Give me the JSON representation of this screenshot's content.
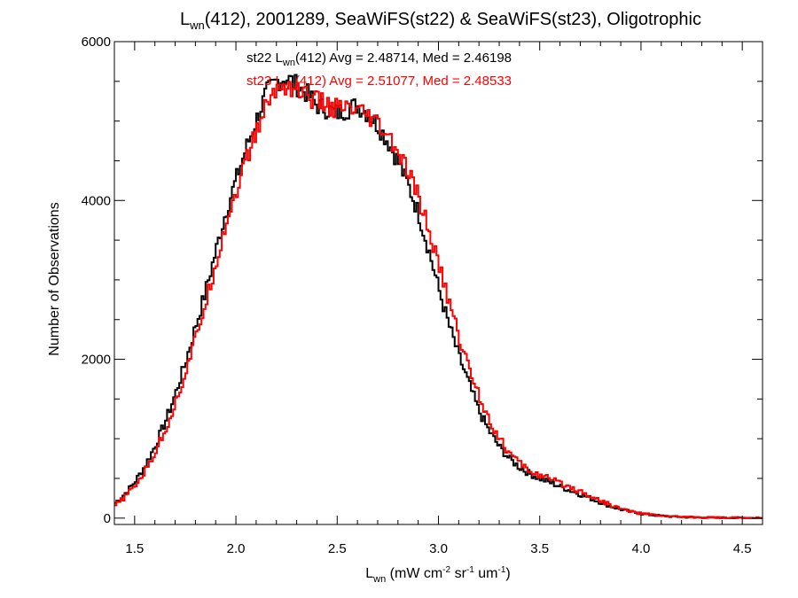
{
  "chart_data": {
    "type": "line",
    "title_parts": [
      {
        "text": "L",
        "sub": false
      },
      {
        "text": "wn",
        "sub": true
      },
      {
        "text": "(412), 2001289, SeaWiFS(st22) & SeaWiFS(st23), Oligotrophic",
        "sub": false
      }
    ],
    "xlabel_parts": [
      {
        "text": "L",
        "baseline": "normal"
      },
      {
        "text": "wn",
        "baseline": "sub"
      },
      {
        "text": " (mW cm",
        "baseline": "normal"
      },
      {
        "text": "-2",
        "baseline": "super"
      },
      {
        "text": " sr",
        "baseline": "normal"
      },
      {
        "text": "-1",
        "baseline": "super"
      },
      {
        "text": " um",
        "baseline": "normal"
      },
      {
        "text": "-1",
        "baseline": "super"
      },
      {
        "text": ")",
        "baseline": "normal"
      }
    ],
    "ylabel": "Number of Observations",
    "xlim": [
      1.4,
      4.6
    ],
    "ylim": [
      -80,
      6000
    ],
    "x_ticks": [
      1.5,
      2.0,
      2.5,
      3.0,
      3.5,
      4.0,
      4.5
    ],
    "x_tick_labels": [
      "1.5",
      "2.0",
      "2.5",
      "3.0",
      "3.5",
      "4.0",
      "4.5"
    ],
    "y_ticks": [
      0,
      2000,
      4000,
      6000
    ],
    "y_tick_labels": [
      "0",
      "2000",
      "4000",
      "6000"
    ],
    "grid": false,
    "style": "step",
    "annotations": [
      {
        "prefix": "st22 L",
        "sub": "wn",
        "suffix": "(412) Avg = 2.48714, Med = 2.46198",
        "color": "#000000"
      },
      {
        "prefix": "st23 L",
        "sub": "wn",
        "suffix": "(412) Avg = 2.51077, Med = 2.48533",
        "color": "#ff0000"
      }
    ],
    "series": [
      {
        "name": "st22",
        "color": "#000000",
        "x": [
          1.4,
          1.45,
          1.5,
          1.55,
          1.6,
          1.65,
          1.7,
          1.75,
          1.8,
          1.85,
          1.9,
          1.95,
          2.0,
          2.05,
          2.1,
          2.15,
          2.2,
          2.25,
          2.3,
          2.35,
          2.4,
          2.45,
          2.5,
          2.55,
          2.6,
          2.65,
          2.7,
          2.75,
          2.8,
          2.85,
          2.9,
          2.95,
          3.0,
          3.05,
          3.1,
          3.15,
          3.2,
          3.25,
          3.3,
          3.35,
          3.4,
          3.45,
          3.5,
          3.55,
          3.6,
          3.65,
          3.7,
          3.75,
          3.8,
          3.85,
          3.9,
          3.95,
          4.0,
          4.05,
          4.1,
          4.15,
          4.2,
          4.3,
          4.4,
          4.5,
          4.6
        ],
        "y": [
          180,
          300,
          450,
          650,
          900,
          1200,
          1550,
          1950,
          2400,
          2850,
          3350,
          3850,
          4250,
          4650,
          5000,
          5350,
          5500,
          5550,
          5450,
          5350,
          5200,
          5150,
          5100,
          5150,
          5200,
          5100,
          4950,
          4750,
          4500,
          4200,
          3850,
          3400,
          2900,
          2450,
          2050,
          1700,
          1350,
          1100,
          900,
          750,
          640,
          560,
          500,
          450,
          400,
          350,
          300,
          250,
          200,
          150,
          110,
          80,
          55,
          40,
          30,
          20,
          15,
          8,
          4,
          2,
          1
        ]
      },
      {
        "name": "st23",
        "color": "#ff0000",
        "x": [
          1.4,
          1.45,
          1.5,
          1.55,
          1.6,
          1.65,
          1.7,
          1.75,
          1.8,
          1.85,
          1.9,
          1.95,
          2.0,
          2.05,
          2.1,
          2.15,
          2.2,
          2.25,
          2.3,
          2.35,
          2.4,
          2.45,
          2.5,
          2.55,
          2.6,
          2.65,
          2.7,
          2.75,
          2.8,
          2.85,
          2.9,
          2.95,
          3.0,
          3.05,
          3.1,
          3.15,
          3.2,
          3.25,
          3.3,
          3.35,
          3.4,
          3.45,
          3.5,
          3.55,
          3.6,
          3.65,
          3.7,
          3.75,
          3.8,
          3.85,
          3.9,
          3.95,
          4.0,
          4.05,
          4.1,
          4.15,
          4.2,
          4.3,
          4.4,
          4.5,
          4.6
        ],
        "y": [
          150,
          260,
          400,
          580,
          820,
          1100,
          1430,
          1820,
          2250,
          2700,
          3200,
          3700,
          4100,
          4500,
          4850,
          5200,
          5400,
          5450,
          5400,
          5320,
          5250,
          5200,
          5150,
          5150,
          5100,
          5050,
          4950,
          4800,
          4600,
          4350,
          4050,
          3650,
          3200,
          2750,
          2300,
          1900,
          1550,
          1250,
          1000,
          820,
          690,
          600,
          540,
          490,
          440,
          390,
          340,
          280,
          220,
          165,
          120,
          85,
          60,
          45,
          32,
          22,
          16,
          9,
          5,
          2,
          1
        ]
      }
    ]
  }
}
